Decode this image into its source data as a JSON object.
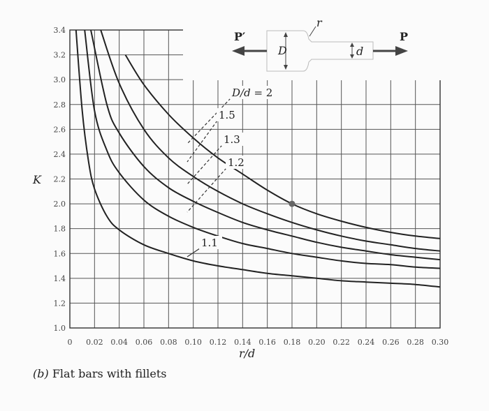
{
  "chart_data": {
    "type": "line",
    "title": "",
    "xlabel": "r/d",
    "ylabel": "K",
    "xlim": [
      0,
      0.3
    ],
    "ylim": [
      1.0,
      3.4
    ],
    "xticks": [
      "0",
      "0.02",
      "0.04",
      "0.06",
      "0.08",
      "0.10",
      "0.12",
      "0.14",
      "0.16",
      "0.18",
      "0.20",
      "0.22",
      "0.24",
      "0.26",
      "0.28",
      "0.30"
    ],
    "yticks": [
      "1.0",
      "1.2",
      "1.4",
      "1.6",
      "1.8",
      "2.0",
      "2.2",
      "2.4",
      "2.6",
      "2.8",
      "3.0",
      "3.2",
      "3.4"
    ],
    "grid": true,
    "series": [
      {
        "name": "D/d = 2",
        "x": [
          0.045,
          0.06,
          0.08,
          0.1,
          0.12,
          0.14,
          0.16,
          0.18,
          0.2,
          0.22,
          0.24,
          0.26,
          0.28,
          0.3
        ],
        "y": [
          3.2,
          2.96,
          2.72,
          2.53,
          2.37,
          2.24,
          2.11,
          2.0,
          1.92,
          1.86,
          1.81,
          1.77,
          1.74,
          1.72
        ]
      },
      {
        "name": "1.5",
        "x": [
          0.025,
          0.04,
          0.06,
          0.08,
          0.1,
          0.12,
          0.14,
          0.16,
          0.18,
          0.2,
          0.22,
          0.24,
          0.26,
          0.28,
          0.3
        ],
        "y": [
          3.4,
          2.97,
          2.6,
          2.37,
          2.22,
          2.1,
          2.0,
          1.92,
          1.85,
          1.79,
          1.74,
          1.7,
          1.67,
          1.64,
          1.62
        ]
      },
      {
        "name": "1.3",
        "x": [
          0.017,
          0.03,
          0.04,
          0.06,
          0.08,
          0.1,
          0.12,
          0.14,
          0.16,
          0.18,
          0.2,
          0.22,
          0.24,
          0.26,
          0.28,
          0.3
        ],
        "y": [
          3.4,
          2.8,
          2.57,
          2.3,
          2.13,
          2.02,
          1.93,
          1.85,
          1.79,
          1.74,
          1.69,
          1.65,
          1.62,
          1.59,
          1.57,
          1.55
        ]
      },
      {
        "name": "1.2",
        "x": [
          0.012,
          0.02,
          0.03,
          0.04,
          0.06,
          0.08,
          0.1,
          0.12,
          0.14,
          0.16,
          0.18,
          0.2,
          0.22,
          0.24,
          0.26,
          0.28,
          0.3
        ],
        "y": [
          3.4,
          2.75,
          2.43,
          2.25,
          2.03,
          1.9,
          1.81,
          1.74,
          1.68,
          1.64,
          1.6,
          1.57,
          1.54,
          1.52,
          1.51,
          1.49,
          1.48
        ]
      },
      {
        "name": "1.1",
        "x": [
          0.005,
          0.01,
          0.015,
          0.02,
          0.03,
          0.04,
          0.06,
          0.08,
          0.1,
          0.12,
          0.14,
          0.16,
          0.18,
          0.2,
          0.22,
          0.24,
          0.26,
          0.28,
          0.3
        ],
        "y": [
          3.4,
          2.75,
          2.35,
          2.12,
          1.9,
          1.79,
          1.67,
          1.6,
          1.54,
          1.5,
          1.47,
          1.44,
          1.42,
          1.4,
          1.38,
          1.37,
          1.36,
          1.35,
          1.33
        ]
      }
    ],
    "highlight_point": {
      "x": 0.18,
      "y": 2.0
    },
    "curve_labels": [
      "D/d = 2",
      "1.5",
      "1.3",
      "1.2",
      "1.1"
    ],
    "inset": {
      "left_load": "P′",
      "right_load": "P",
      "large_dim": "D",
      "small_dim": "d",
      "fillet": "r"
    }
  },
  "caption": {
    "part": "(b)",
    "text": " Flat bars with fillets"
  }
}
